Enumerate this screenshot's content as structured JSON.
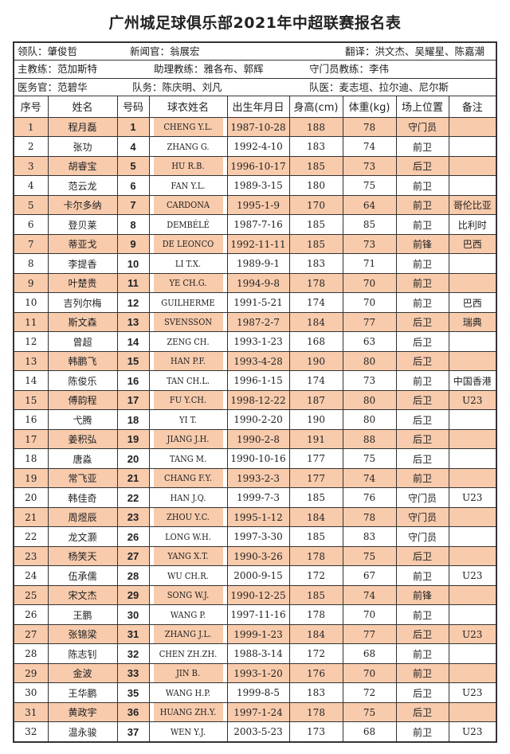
{
  "title": "广州城足球俱乐部2021年中超联赛报名表",
  "staff": [
    [
      "领队：肇俊哲",
      "新闻官：翁展宏",
      "翻译：洪文杰、吴耀星、陈嘉潮"
    ],
    [
      "主教练：范加斯特",
      "助理教练：雅各布、郭辉",
      "守门员教练：李伟"
    ],
    [
      "医务官：范碧华",
      "队务：陈庆明、刘凡",
      "队医：麦志垣、拉尔迪、尼尔斯"
    ]
  ],
  "headers": [
    "序号",
    "姓名",
    "号码",
    "球衣姓名",
    "出生年月日",
    "身高(cm)",
    "体重(kg)",
    "场上位置",
    "备注"
  ],
  "row_color": "#f8cbad",
  "rows": [
    [
      "1",
      "程月磊",
      "1",
      "CHENG Y.L.",
      "1987-10-28",
      "188",
      "78",
      "守门员",
      ""
    ],
    [
      "2",
      "张功",
      "4",
      "ZHANG G.",
      "1992-4-10",
      "183",
      "74",
      "前卫",
      ""
    ],
    [
      "3",
      "胡睿宝",
      "5",
      "HU R.B.",
      "1996-10-17",
      "185",
      "73",
      "后卫",
      ""
    ],
    [
      "4",
      "范云龙",
      "6",
      "FAN Y.L.",
      "1989-3-15",
      "180",
      "75",
      "前卫",
      ""
    ],
    [
      "5",
      "卡尔多纳",
      "7",
      "CARDONA",
      "1995-1-9",
      "170",
      "64",
      "前卫",
      "哥伦比亚"
    ],
    [
      "6",
      "登贝莱",
      "8",
      "DEMBÉLÉ",
      "1987-7-16",
      "185",
      "85",
      "前卫",
      "比利时"
    ],
    [
      "7",
      "蒂亚戈",
      "9",
      "DE LEONCO",
      "1992-11-11",
      "185",
      "73",
      "前锋",
      "巴西"
    ],
    [
      "8",
      "李提香",
      "10",
      "LI T.X.",
      "1989-9-1",
      "183",
      "71",
      "前卫",
      ""
    ],
    [
      "9",
      "叶楚贵",
      "11",
      "YE CH.G.",
      "1994-9-8",
      "178",
      "70",
      "前卫",
      ""
    ],
    [
      "10",
      "吉列尔梅",
      "12",
      "GUILHERME",
      "1991-5-21",
      "174",
      "70",
      "前卫",
      "巴西"
    ],
    [
      "11",
      "斯文森",
      "13",
      "SVENSSON",
      "1987-2-7",
      "184",
      "77",
      "后卫",
      "瑞典"
    ],
    [
      "12",
      "曾超",
      "14",
      "ZENG CH.",
      "1993-1-23",
      "168",
      "63",
      "后卫",
      ""
    ],
    [
      "13",
      "韩鹏飞",
      "15",
      "HAN P.F.",
      "1993-4-28",
      "190",
      "80",
      "后卫",
      ""
    ],
    [
      "14",
      "陈俊乐",
      "16",
      "TAN CH.L.",
      "1996-1-15",
      "174",
      "73",
      "前卫",
      "中国香港"
    ],
    [
      "15",
      "傅韵程",
      "17",
      "FU Y.CH.",
      "1998-12-22",
      "187",
      "80",
      "后卫",
      "U23"
    ],
    [
      "16",
      "弋腾",
      "18",
      "YI T.",
      "1990-2-20",
      "190",
      "80",
      "后卫",
      ""
    ],
    [
      "17",
      "姜积弘",
      "19",
      "JIANG J.H.",
      "1990-2-8",
      "191",
      "88",
      "后卫",
      ""
    ],
    [
      "18",
      "唐淼",
      "20",
      "TANG M.",
      "1990-10-16",
      "177",
      "75",
      "后卫",
      ""
    ],
    [
      "19",
      "常飞亚",
      "21",
      "CHANG F.Y.",
      "1993-2-3",
      "177",
      "74",
      "前卫",
      ""
    ],
    [
      "20",
      "韩佳奇",
      "22",
      "HAN J.Q.",
      "1999-7-3",
      "185",
      "76",
      "守门员",
      "U23"
    ],
    [
      "21",
      "周煜辰",
      "23",
      "ZHOU Y.C.",
      "1995-1-12",
      "184",
      "78",
      "守门员",
      ""
    ],
    [
      "22",
      "龙文灏",
      "26",
      "LONG W.H.",
      "1997-3-30",
      "185",
      "83",
      "守门员",
      ""
    ],
    [
      "23",
      "杨笑天",
      "27",
      "YANG X.T.",
      "1990-3-26",
      "178",
      "75",
      "后卫",
      ""
    ],
    [
      "24",
      "伍承儒",
      "28",
      "WU CH.R.",
      "2000-9-15",
      "172",
      "67",
      "前卫",
      "U23"
    ],
    [
      "25",
      "宋文杰",
      "29",
      "SONG W.J.",
      "1990-12-25",
      "185",
      "74",
      "前锋",
      ""
    ],
    [
      "26",
      "王鹏",
      "30",
      "WANG P.",
      "1997-11-16",
      "178",
      "70",
      "前卫",
      ""
    ],
    [
      "27",
      "张锦梁",
      "31",
      "ZHANG J.L.",
      "1999-1-23",
      "184",
      "77",
      "后卫",
      "U23"
    ],
    [
      "28",
      "陈志钊",
      "32",
      "CHEN ZH.ZH.",
      "1988-3-14",
      "172",
      "68",
      "前卫",
      ""
    ],
    [
      "29",
      "金波",
      "33",
      "JIN B.",
      "1993-1-20",
      "176",
      "70",
      "前卫",
      ""
    ],
    [
      "30",
      "王华鹏",
      "35",
      "WANG H.P.",
      "1999-8-5",
      "183",
      "72",
      "后卫",
      "U23"
    ],
    [
      "31",
      "黄政宇",
      "36",
      "HUANG ZH.Y.",
      "1997-1-24",
      "178",
      "75",
      "后卫",
      ""
    ],
    [
      "32",
      "温永骏",
      "37",
      "WEN Y.J.",
      "2003-5-23",
      "173",
      "68",
      "前卫",
      "U23"
    ]
  ]
}
